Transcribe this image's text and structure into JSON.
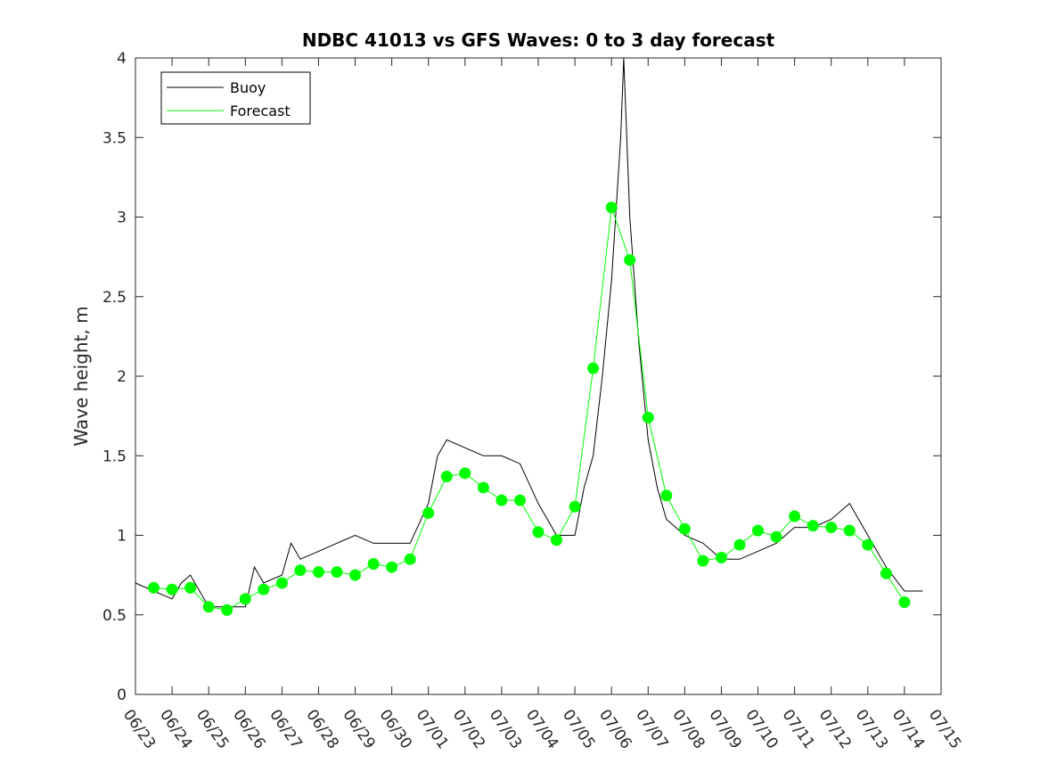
{
  "chart_data": {
    "type": "line",
    "title": "NDBC 41013 vs GFS Waves: 0 to 3 day forecast",
    "xlabel": "",
    "ylabel": "Wave height, m",
    "xlim": [
      "06/23",
      "07/15"
    ],
    "ylim": [
      0,
      4
    ],
    "grid": false,
    "legend_position": "top-left",
    "x_tick_labels": [
      "06/23",
      "06/24",
      "06/25",
      "06/26",
      "06/27",
      "06/28",
      "06/29",
      "06/30",
      "07/01",
      "07/02",
      "07/03",
      "07/04",
      "07/05",
      "07/06",
      "07/07",
      "07/08",
      "07/09",
      "07/10",
      "07/11",
      "07/12",
      "07/13",
      "07/14",
      "07/15"
    ],
    "y_ticks": [
      0,
      0.5,
      1,
      1.5,
      2,
      2.5,
      3,
      3.5,
      4
    ],
    "y_tick_labels": [
      "0",
      "0.5",
      "1",
      "1.5",
      "2",
      "2.5",
      "3",
      "3.5",
      "4"
    ],
    "colors": {
      "buoy": "#000000",
      "forecast": "#00ff00"
    },
    "series": [
      {
        "name": "Buoy",
        "x_days_note_removed": null,
        "x": [
          "06/23 00:00",
          "06/23 12:00",
          "06/24 00:00",
          "06/24 06:00",
          "06/24 12:00",
          "06/24 18:00",
          "06/25 00:00",
          "06/25 12:00",
          "06/26 00:00",
          "06/26 06:00",
          "06/26 12:00",
          "06/27 00:00",
          "06/27 06:00",
          "06/27 12:00",
          "06/28 00:00",
          "06/28 12:00",
          "06/29 00:00",
          "06/29 12:00",
          "06/30 00:00",
          "06/30 12:00",
          "07/01 00:00",
          "07/01 06:00",
          "07/01 12:00",
          "07/02 00:00",
          "07/02 12:00",
          "07/03 00:00",
          "07/03 12:00",
          "07/04 00:00",
          "07/04 12:00",
          "07/05 00:00",
          "07/05 06:00",
          "07/05 12:00",
          "07/05 18:00",
          "07/06 00:00",
          "07/06 06:00",
          "07/06 08:00",
          "07/06 12:00",
          "07/06 18:00",
          "07/07 00:00",
          "07/07 06:00",
          "07/07 12:00",
          "07/08 00:00",
          "07/08 12:00",
          "07/09 00:00",
          "07/09 12:00",
          "07/10 00:00",
          "07/10 12:00",
          "07/11 00:00",
          "07/11 12:00",
          "07/12 00:00",
          "07/12 12:00",
          "07/13 00:00",
          "07/13 12:00",
          "07/14 00:00",
          "07/14 12:00"
        ],
        "values": [
          0.7,
          0.65,
          0.6,
          0.7,
          0.75,
          0.65,
          0.55,
          0.55,
          0.55,
          0.8,
          0.7,
          0.75,
          0.95,
          0.85,
          0.9,
          0.95,
          1.0,
          0.95,
          0.95,
          0.95,
          1.2,
          1.5,
          1.6,
          1.55,
          1.5,
          1.5,
          1.45,
          1.2,
          1.0,
          1.0,
          1.3,
          1.5,
          2.0,
          2.6,
          3.5,
          4.0,
          3.0,
          2.2,
          1.6,
          1.3,
          1.1,
          1.0,
          0.95,
          0.85,
          0.85,
          0.9,
          0.95,
          1.05,
          1.05,
          1.1,
          1.2,
          1.0,
          0.8,
          0.65,
          0.65
        ]
      },
      {
        "name": "Forecast",
        "x": [
          "06/23 12:00",
          "06/24 00:00",
          "06/24 12:00",
          "06/25 00:00",
          "06/25 12:00",
          "06/26 00:00",
          "06/26 12:00",
          "06/27 00:00",
          "06/27 12:00",
          "06/28 00:00",
          "06/28 12:00",
          "06/29 00:00",
          "06/29 12:00",
          "06/30 00:00",
          "06/30 12:00",
          "07/01 00:00",
          "07/01 12:00",
          "07/02 00:00",
          "07/02 12:00",
          "07/03 00:00",
          "07/03 12:00",
          "07/04 00:00",
          "07/04 12:00",
          "07/05 00:00",
          "07/05 12:00",
          "07/06 00:00",
          "07/06 12:00",
          "07/07 00:00",
          "07/07 12:00",
          "07/08 00:00",
          "07/08 12:00",
          "07/09 00:00",
          "07/09 12:00",
          "07/10 00:00",
          "07/10 12:00",
          "07/11 00:00",
          "07/11 12:00",
          "07/12 00:00",
          "07/12 12:00",
          "07/13 00:00",
          "07/13 12:00",
          "07/14 00:00"
        ],
        "values": [
          0.67,
          0.66,
          0.67,
          0.55,
          0.53,
          0.6,
          0.66,
          0.7,
          0.78,
          0.77,
          0.77,
          0.75,
          0.82,
          0.8,
          0.85,
          1.14,
          1.37,
          1.39,
          1.3,
          1.22,
          1.22,
          1.02,
          0.97,
          1.18,
          2.05,
          3.06,
          2.73,
          1.74,
          1.25,
          1.04,
          0.84,
          0.86,
          0.94,
          1.03,
          0.99,
          1.12,
          1.06,
          1.05,
          1.03,
          0.94,
          0.76,
          0.58
        ]
      }
    ]
  },
  "legend": {
    "items": [
      "Buoy",
      "Forecast"
    ]
  }
}
